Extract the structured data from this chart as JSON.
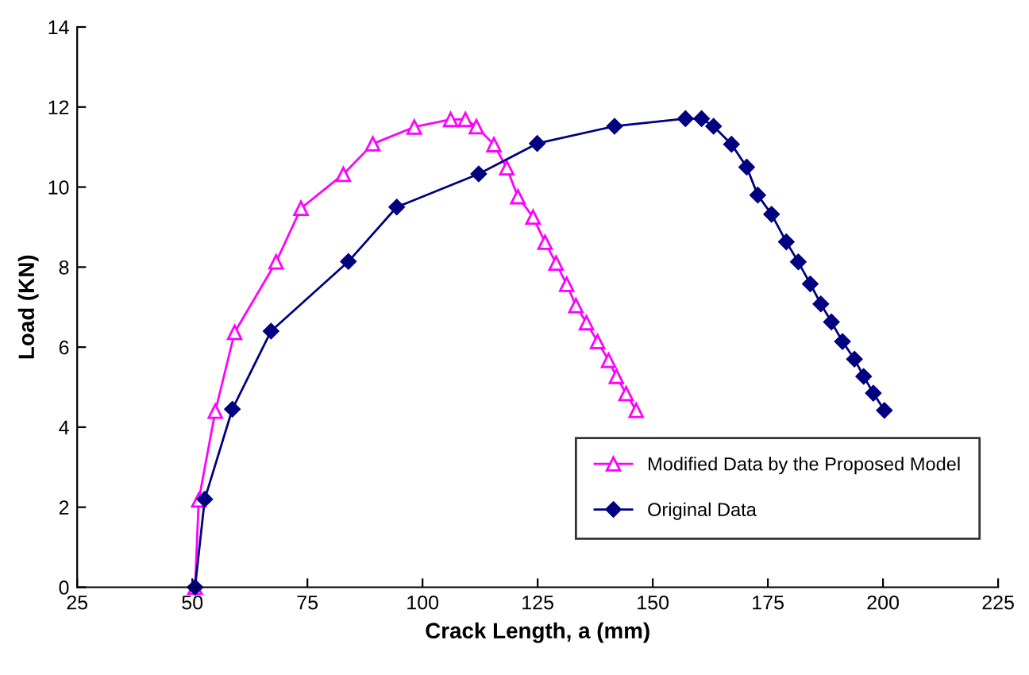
{
  "chart_data": {
    "type": "line",
    "xlabel": "Crack Length, a (mm)",
    "ylabel": "Load (KN)",
    "xlim": [
      25,
      225
    ],
    "xticks": [
      25,
      50,
      75,
      100,
      125,
      150,
      175,
      200,
      225
    ],
    "ylim": [
      0,
      14
    ],
    "yticks": [
      0,
      2,
      4,
      6,
      8,
      10,
      12,
      14
    ],
    "grid": false,
    "legend": "bottom right",
    "series": [
      {
        "name": "Modified Data by the Proposed Model",
        "color": "#ff00ff",
        "marker": "triangle",
        "x": [
          50.6,
          51.4,
          55,
          59.2,
          68.2,
          73.6,
          82.8,
          89.2,
          98.2,
          106.1,
          109.3,
          111.7,
          115.5,
          118.3,
          120.7,
          124,
          126.6,
          129,
          131.3,
          133.3,
          135.6,
          138,
          140.4,
          142.1,
          144.2,
          146.4
        ],
        "values": [
          0,
          2.18,
          4.4,
          6.37,
          8.13,
          9.47,
          10.32,
          11.08,
          11.5,
          11.69,
          11.69,
          11.51,
          11.06,
          10.48,
          9.76,
          9.25,
          8.62,
          8.1,
          7.57,
          7.04,
          6.61,
          6.14,
          5.67,
          5.27,
          4.84,
          4.42
        ]
      },
      {
        "name": "Original Data",
        "color": "#000080",
        "marker": "diamond",
        "x": [
          50.6,
          52.7,
          58.7,
          67.1,
          83.9,
          94.4,
          112.2,
          124.9,
          141.7,
          157.1,
          160.6,
          163.2,
          167.1,
          170.4,
          172.8,
          175.8,
          179,
          181.6,
          184.2,
          186.5,
          188.8,
          191.2,
          193.8,
          195.8,
          197.9,
          200.3
        ],
        "values": [
          0,
          2.2,
          4.45,
          6.4,
          8.14,
          9.5,
          10.33,
          11.09,
          11.52,
          11.71,
          11.71,
          11.52,
          11.07,
          10.5,
          9.8,
          9.32,
          8.63,
          8.13,
          7.58,
          7.08,
          6.63,
          6.14,
          5.7,
          5.27,
          4.85,
          4.42
        ]
      }
    ]
  }
}
